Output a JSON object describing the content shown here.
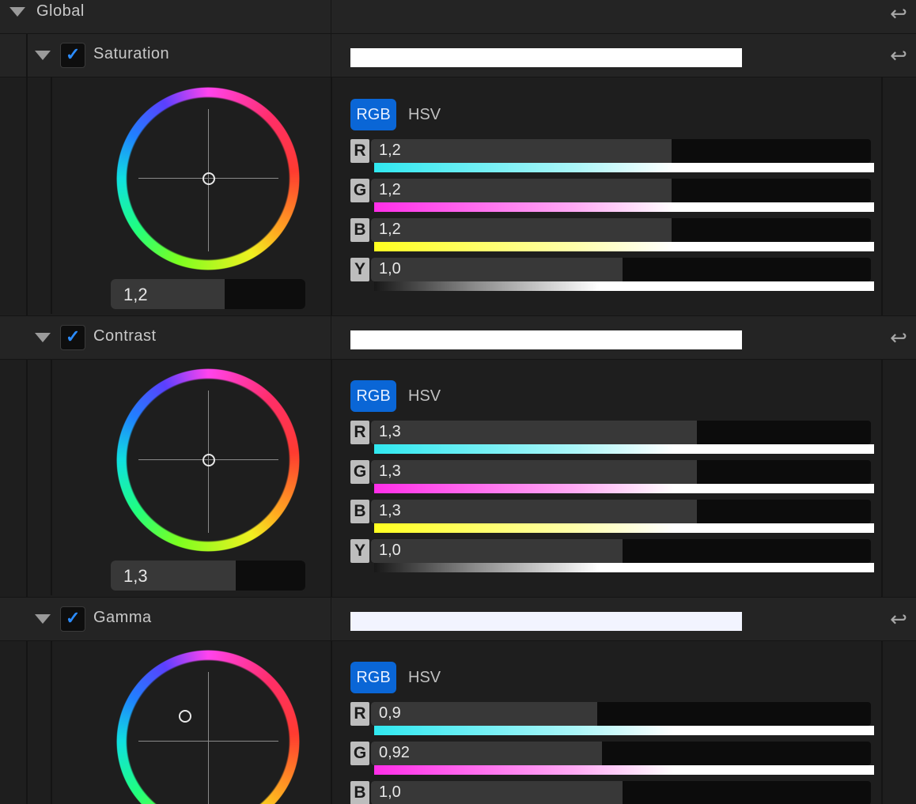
{
  "global": {
    "label": "Global"
  },
  "mode_labels": {
    "rgb": "RGB",
    "hsv": "HSV"
  },
  "sections": [
    {
      "label": "Saturation",
      "enabled": true,
      "wheel_value": "1,2",
      "wheel_level": 0.58,
      "channels": [
        {
          "letter": "R",
          "value": "1,2",
          "level": 0.6
        },
        {
          "letter": "G",
          "value": "1,2",
          "level": 0.6
        },
        {
          "letter": "B",
          "value": "1,2",
          "level": 0.6
        },
        {
          "letter": "Y",
          "value": "1,0",
          "level": 0.5
        }
      ]
    },
    {
      "label": "Contrast",
      "enabled": true,
      "wheel_value": "1,3",
      "wheel_level": 0.64,
      "channels": [
        {
          "letter": "R",
          "value": "1,3",
          "level": 0.65
        },
        {
          "letter": "G",
          "value": "1,3",
          "level": 0.65
        },
        {
          "letter": "B",
          "value": "1,3",
          "level": 0.65
        },
        {
          "letter": "Y",
          "value": "1,0",
          "level": 0.5
        }
      ]
    },
    {
      "label": "Gamma",
      "enabled": true,
      "channels": [
        {
          "letter": "R",
          "value": "0,9",
          "level": 0.45
        },
        {
          "letter": "G",
          "value": "0,92",
          "level": 0.46
        },
        {
          "letter": "B",
          "value": "1,0",
          "level": 0.5
        }
      ]
    }
  ],
  "colors": {
    "accent": "#0a66d6",
    "check": "#2b8cff"
  }
}
